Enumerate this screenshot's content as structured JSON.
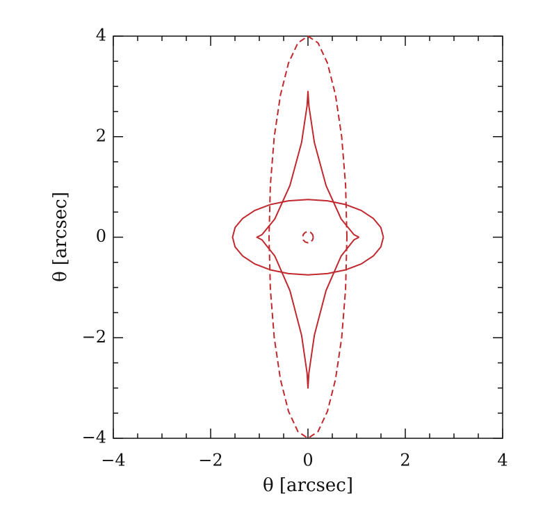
{
  "chart_data": {
    "type": "line",
    "xlabel": "θ [arcsec]",
    "ylabel": "θ [arcsec]",
    "xlim": [
      -4,
      4
    ],
    "ylim": [
      -4,
      4
    ],
    "xticks": [
      {
        "value": -4,
        "label": "−4"
      },
      {
        "value": -2,
        "label": "−2"
      },
      0,
      2,
      4
    ],
    "yticks": [
      {
        "value": -4,
        "label": "−4"
      },
      {
        "value": -2,
        "label": "−2"
      },
      0,
      2,
      4
    ],
    "xminorticks": [
      -3.5,
      -3,
      -2.5,
      -1.5,
      -1,
      -0.5,
      0.5,
      1,
      1.5,
      2.5,
      3,
      3.5
    ],
    "yminorticks": [
      -3.5,
      -3,
      -2.5,
      -1.5,
      -1,
      -0.5,
      0.5,
      1,
      1.5,
      2.5,
      3,
      3.5
    ],
    "series": [
      {
        "color": "#c0282d",
        "dashed": true,
        "x": [
          0.8,
          0.773,
          0.693,
          0.566,
          0.4,
          0.207,
          0,
          -0.207,
          -0.4,
          -0.566,
          -0.693,
          -0.773,
          -0.8,
          -0.773,
          -0.693,
          -0.566,
          -0.4,
          -0.207,
          0,
          0.207,
          0.4,
          0.566,
          0.693,
          0.773,
          0.8
        ],
        "values": [
          0,
          1.035,
          2,
          2.828,
          3.464,
          3.864,
          4,
          3.864,
          3.464,
          2.828,
          2,
          1.035,
          0,
          -1.035,
          -2,
          -2.828,
          -3.464,
          -3.864,
          -4,
          -3.864,
          -3.464,
          -2.828,
          -2,
          -1.035,
          0
        ]
      },
      {
        "color": "#c0282d",
        "dashed": false,
        "x": [
          1.55,
          1.497,
          1.342,
          1.096,
          0.775,
          0.401,
          0,
          -0.401,
          -0.775,
          -1.096,
          -1.342,
          -1.497,
          -1.55,
          -1.497,
          -1.342,
          -1.096,
          -0.775,
          -0.401,
          0,
          0.401,
          0.775,
          1.096,
          1.342,
          1.497,
          1.55
        ],
        "values": [
          0,
          0.194,
          0.375,
          0.53,
          0.65,
          0.724,
          0.75,
          0.724,
          0.65,
          0.53,
          0.375,
          0.194,
          0,
          -0.194,
          -0.375,
          -0.53,
          -0.65,
          -0.724,
          -0.75,
          -0.724,
          -0.65,
          -0.53,
          -0.375,
          -0.194,
          0
        ]
      },
      {
        "color": "#c0282d",
        "dashed": false,
        "x": [
          1.05,
          0.946,
          0.682,
          0.371,
          0.131,
          0.018,
          0,
          -0.018,
          -0.131,
          -0.371,
          -0.682,
          -0.946,
          -1.05,
          -0.946,
          -0.682,
          -0.371,
          -0.131,
          -0.018,
          0,
          0.018,
          0.131,
          0.371,
          0.682,
          0.946,
          1.05
        ],
        "values": [
          0,
          0.05,
          0.363,
          1.026,
          1.885,
          2.613,
          2.9,
          2.613,
          1.885,
          1.026,
          0.363,
          0.05,
          0,
          -0.052,
          -0.375,
          -1.061,
          -1.95,
          -2.703,
          -3.0,
          -2.703,
          -1.95,
          -1.061,
          -0.375,
          -0.052,
          0
        ]
      },
      {
        "color": "#c0282d",
        "dashed": true,
        "x": [
          0.11,
          0.095,
          0.055,
          0,
          -0.055,
          -0.095,
          -0.11,
          -0.095,
          -0.055,
          0,
          0.055,
          0.095,
          0.11
        ],
        "values": [
          0,
          0.055,
          0.095,
          0.11,
          0.095,
          0.055,
          0,
          -0.055,
          -0.095,
          -0.11,
          -0.095,
          -0.055,
          0
        ]
      }
    ]
  }
}
